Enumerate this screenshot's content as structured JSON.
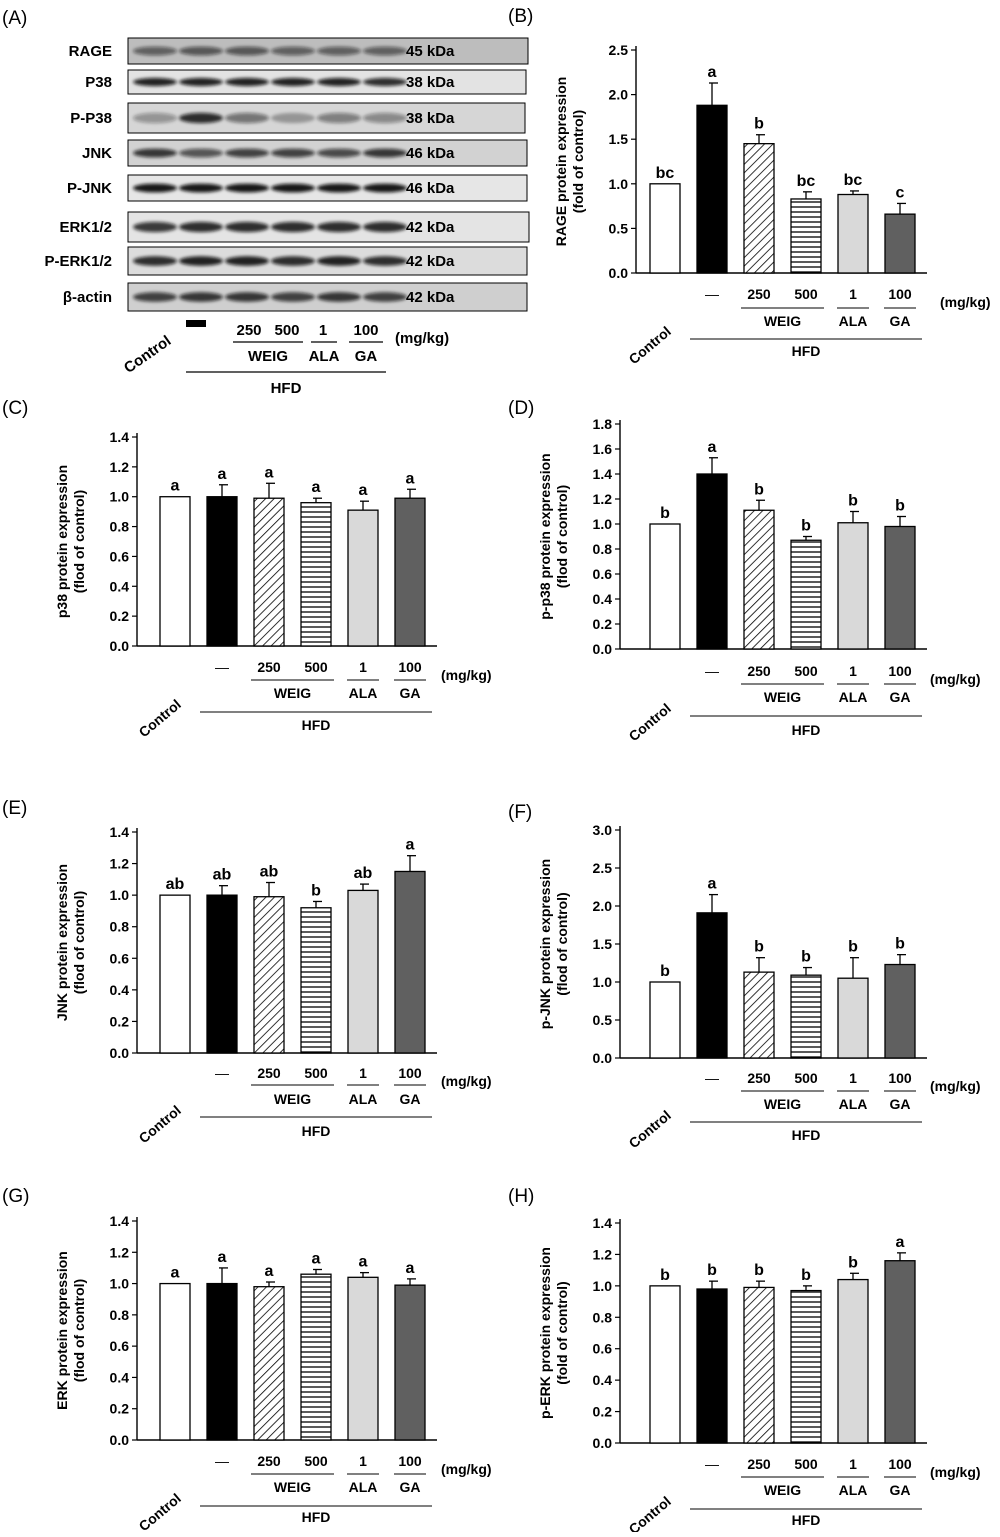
{
  "figure": {
    "panel_letters": [
      "(A)",
      "(B)",
      "(C)",
      "(D)",
      "(E)",
      "(F)",
      "(G)",
      "(H)"
    ]
  },
  "western_blot": {
    "label": "(A)",
    "blots": [
      {
        "protein": "RAGE",
        "size": "45 kDa"
      },
      {
        "protein": "P38",
        "size": "38 kDa"
      },
      {
        "protein": "P-P38",
        "size": "38 kDa"
      },
      {
        "protein": "JNK",
        "size": "46 kDa"
      },
      {
        "protein": "P-JNK",
        "size": "46 kDa"
      },
      {
        "protein": "ERK1/2",
        "size": "42 kDa"
      },
      {
        "protein": "P-ERK1/2",
        "size": "42 kDa"
      },
      {
        "protein": "β-actin",
        "size": "42 kDa"
      }
    ],
    "lane_labels": {
      "control": "Control",
      "hfd_alone": "▬",
      "doses": [
        "250",
        "500",
        "1",
        "100"
      ],
      "unit": "(mg/kg)",
      "groups": [
        "WEIG",
        "ALA",
        "GA"
      ],
      "diet": "HFD"
    }
  },
  "group_axis": {
    "control": "Control",
    "hfd_alone": "—",
    "doses": [
      "250",
      "500",
      "1",
      "100"
    ],
    "unit": "(mg/kg)",
    "groups": [
      "WEIG",
      "ALA",
      "GA"
    ],
    "diet": "HFD"
  },
  "chart_data": [
    {
      "panel": "(B)",
      "type": "bar",
      "ylabel_line1": "RAGE protein expression",
      "ylabel_line2": "(fold of control)",
      "ylim": [
        0,
        2.5
      ],
      "yticks": [
        0.0,
        0.5,
        1.0,
        1.5,
        2.0,
        2.5
      ],
      "tick_labels": [
        "0.0",
        "0.5",
        "1.0",
        "1.5",
        "2.0",
        "2.5"
      ],
      "values": [
        1.0,
        1.88,
        1.45,
        0.83,
        0.88,
        0.66
      ],
      "errors": [
        0.0,
        0.25,
        0.1,
        0.08,
        0.04,
        0.12
      ],
      "significance": [
        "bc",
        "a",
        "b",
        "bc",
        "bc",
        "c"
      ]
    },
    {
      "panel": "(C)",
      "type": "bar",
      "ylabel_line1": "p38 protein expression",
      "ylabel_line2": "(flod of control)",
      "ylim": [
        0,
        1.4
      ],
      "yticks": [
        0.0,
        0.2,
        0.4,
        0.6,
        0.8,
        1.0,
        1.2,
        1.4
      ],
      "tick_labels": [
        "0.0",
        "0.2",
        "0.4",
        "0.6",
        "0.8",
        "1.0",
        "1.2",
        "1.4"
      ],
      "values": [
        1.0,
        1.0,
        0.99,
        0.96,
        0.91,
        0.99
      ],
      "errors": [
        0.0,
        0.08,
        0.1,
        0.03,
        0.06,
        0.06
      ],
      "significance": [
        "a",
        "a",
        "a",
        "a",
        "a",
        "a"
      ]
    },
    {
      "panel": "(D)",
      "type": "bar",
      "ylabel_line1": "p-p38 protein expression",
      "ylabel_line2": "(flod of control)",
      "ylim": [
        0,
        1.8
      ],
      "yticks": [
        0.0,
        0.2,
        0.4,
        0.6,
        0.8,
        1.0,
        1.2,
        1.4,
        1.6,
        1.8
      ],
      "tick_labels": [
        "0.0",
        "0.2",
        "0.4",
        "0.6",
        "0.8",
        "1.0",
        "1.2",
        "1.4",
        "1.6",
        "1.8"
      ],
      "values": [
        1.0,
        1.4,
        1.11,
        0.87,
        1.01,
        0.98
      ],
      "errors": [
        0.0,
        0.13,
        0.08,
        0.03,
        0.09,
        0.08
      ],
      "significance": [
        "b",
        "a",
        "b",
        "b",
        "b",
        "b"
      ]
    },
    {
      "panel": "(E)",
      "type": "bar",
      "ylabel_line1": "JNK protein expression",
      "ylabel_line2": "(flod of control)",
      "ylim": [
        0,
        1.4
      ],
      "yticks": [
        0.0,
        0.2,
        0.4,
        0.6,
        0.8,
        1.0,
        1.2,
        1.4
      ],
      "tick_labels": [
        "0.0",
        "0.2",
        "0.4",
        "0.6",
        "0.8",
        "1.0",
        "1.2",
        "1.4"
      ],
      "values": [
        1.0,
        1.0,
        0.99,
        0.92,
        1.03,
        1.15
      ],
      "errors": [
        0.0,
        0.06,
        0.09,
        0.04,
        0.04,
        0.1
      ],
      "significance": [
        "ab",
        "ab",
        "ab",
        "b",
        "ab",
        "a"
      ]
    },
    {
      "panel": "(F)",
      "type": "bar",
      "ylabel_line1": "p-JNK protein expression",
      "ylabel_line2": "(flod of control)",
      "ylim": [
        0,
        3.0
      ],
      "yticks": [
        0.0,
        0.5,
        1.0,
        1.5,
        2.0,
        2.5,
        3.0
      ],
      "tick_labels": [
        "0.0",
        "0.5",
        "1.0",
        "1.5",
        "2.0",
        "2.5",
        "3.0"
      ],
      "values": [
        1.0,
        1.91,
        1.13,
        1.09,
        1.05,
        1.23
      ],
      "errors": [
        0.0,
        0.24,
        0.19,
        0.1,
        0.27,
        0.13
      ],
      "significance": [
        "b",
        "a",
        "b",
        "b",
        "b",
        "b"
      ]
    },
    {
      "panel": "(G)",
      "type": "bar",
      "ylabel_line1": "ERK protein expression",
      "ylabel_line2": "(flod of control)",
      "ylim": [
        0,
        1.4
      ],
      "yticks": [
        0.0,
        0.2,
        0.4,
        0.6,
        0.8,
        1.0,
        1.2,
        1.4
      ],
      "tick_labels": [
        "0.0",
        "0.2",
        "0.4",
        "0.6",
        "0.8",
        "1.0",
        "1.2",
        "1.4"
      ],
      "values": [
        1.0,
        1.0,
        0.98,
        1.06,
        1.04,
        0.99
      ],
      "errors": [
        0.0,
        0.1,
        0.03,
        0.03,
        0.03,
        0.04
      ],
      "significance": [
        "a",
        "a",
        "a",
        "a",
        "a",
        "a"
      ]
    },
    {
      "panel": "(H)",
      "type": "bar",
      "ylabel_line1": "p-ERK protein expression",
      "ylabel_line2": "(fold of control)",
      "ylim": [
        0,
        1.4
      ],
      "yticks": [
        0.0,
        0.2,
        0.4,
        0.6,
        0.8,
        1.0,
        1.2,
        1.4
      ],
      "tick_labels": [
        "0.0",
        "0.2",
        "0.4",
        "0.6",
        "0.8",
        "1.0",
        "1.2",
        "1.4"
      ],
      "values": [
        1.0,
        0.98,
        0.99,
        0.97,
        1.04,
        1.16
      ],
      "errors": [
        0.0,
        0.05,
        0.04,
        0.03,
        0.04,
        0.05
      ],
      "significance": [
        "b",
        "b",
        "b",
        "b",
        "b",
        "a"
      ]
    }
  ],
  "bar_styles": [
    {
      "fill": "#ffffff",
      "pattern": "none"
    },
    {
      "fill": "#000000",
      "pattern": "none"
    },
    {
      "fill": "#ffffff",
      "pattern": "diagonal"
    },
    {
      "fill": "#ffffff",
      "pattern": "horizontal"
    },
    {
      "fill": "#d9d9d9",
      "pattern": "none"
    },
    {
      "fill": "#606060",
      "pattern": "none"
    }
  ]
}
